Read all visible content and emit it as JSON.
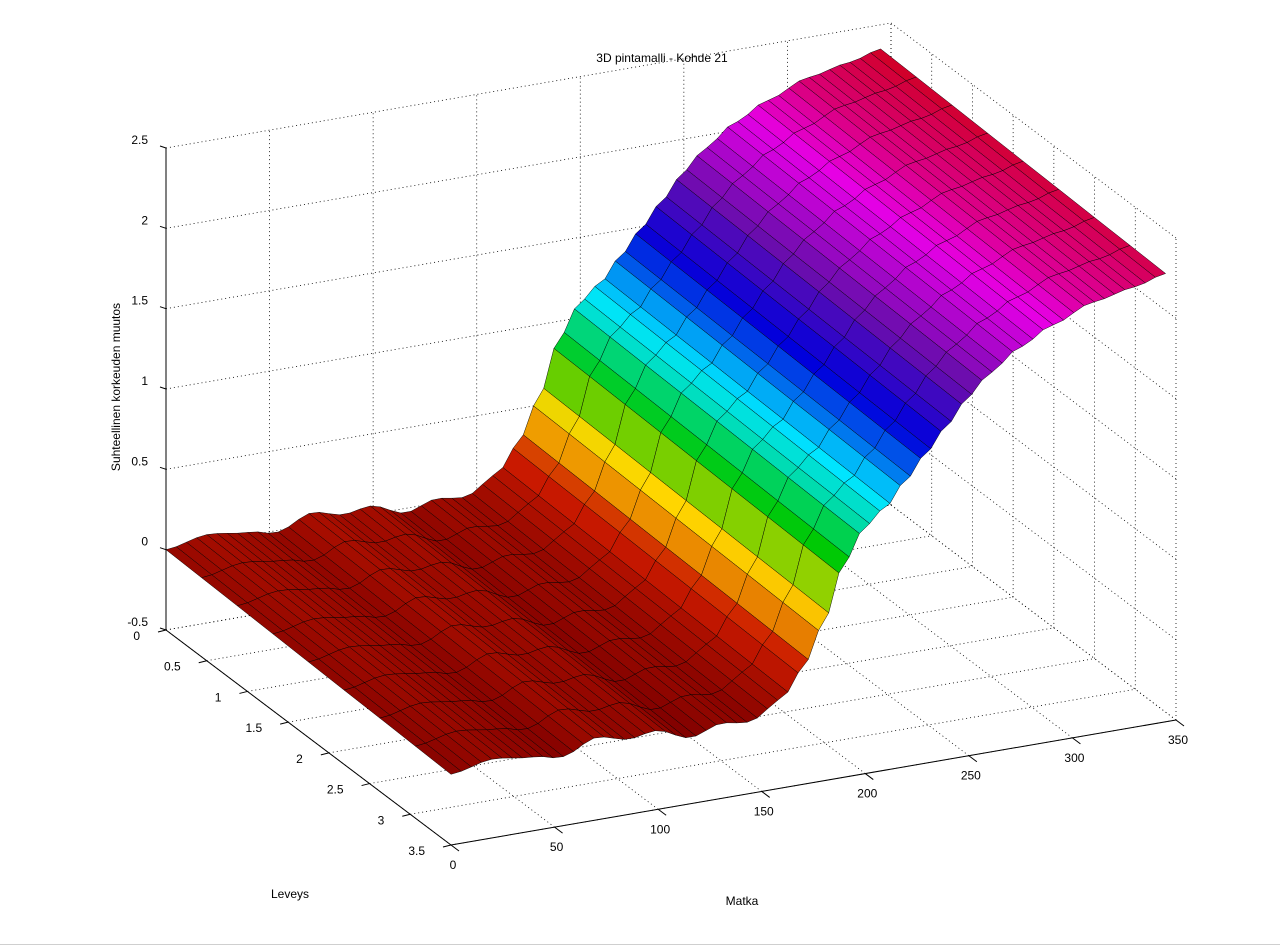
{
  "chart_data": {
    "type": "surface3d",
    "title": "3D pintamalli - Kohde 21",
    "xlabel": "Matka",
    "ylabel": "Leveys",
    "zlabel": "Suhteellinen korkeuden muutos",
    "xlim": [
      0,
      350
    ],
    "ylim": [
      0,
      3.5
    ],
    "zlim": [
      -0.5,
      2.5
    ],
    "x_ticks": [
      "0",
      "50",
      "100",
      "150",
      "200",
      "250",
      "300",
      "350"
    ],
    "y_ticks": [
      "0",
      "0.5",
      "1",
      "1.5",
      "2",
      "2.5",
      "3",
      "3.5"
    ],
    "z_ticks": [
      "-0.5",
      "0",
      "0.5",
      "1",
      "1.5",
      "2",
      "2.5"
    ],
    "grid": true,
    "colormap": [
      "#7f0000",
      "#cc1a00",
      "#ffd700",
      "#00c800",
      "#00e5ff",
      "#0000dc",
      "#6a0dad",
      "#e600e6",
      "#cc0000"
    ],
    "surface_profile": {
      "x": [
        0,
        20,
        40,
        55,
        70,
        85,
        100,
        115,
        130,
        145,
        160,
        170,
        180,
        190,
        200,
        210,
        220,
        230,
        240,
        250,
        260,
        275,
        290,
        310,
        330,
        345
      ],
      "z": [
        0,
        0.05,
        0.02,
        -0.02,
        0.04,
        0.0,
        0.05,
        0.0,
        0.06,
        0.02,
        0.1,
        0.25,
        0.55,
        0.9,
        1.1,
        1.2,
        1.35,
        1.5,
        1.65,
        1.8,
        1.92,
        2.05,
        2.15,
        2.25,
        2.3,
        2.35
      ]
    },
    "cross_slope": -0.06
  }
}
